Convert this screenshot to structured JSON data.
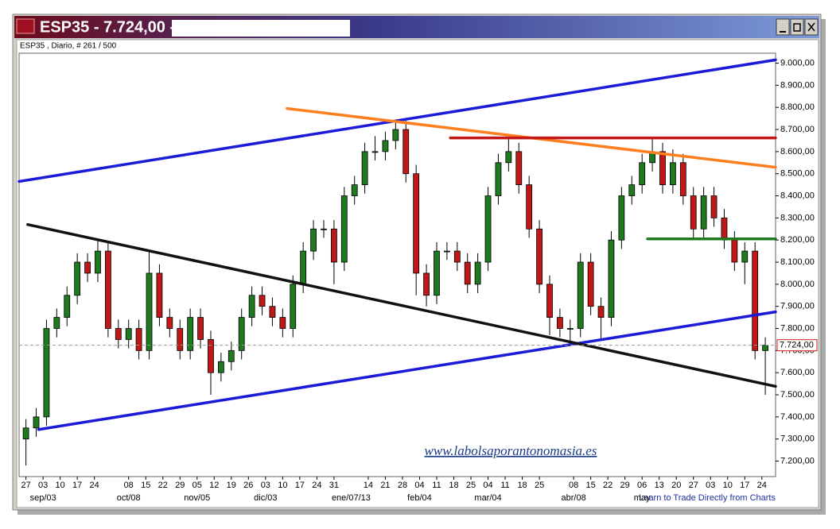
{
  "chart_data": {
    "type": "candlestick",
    "title": "ESP35 - 7.724,00 -",
    "subtitle": "ESP35 , Diario, # 261 / 500",
    "watermark": "www.labolsaporantonomasia.es",
    "footer_link": "Learn to Trade Directly from Charts",
    "up_color": "#1f7a1f",
    "down_color": "#c01818",
    "x": [
      0,
      3,
      6,
      9,
      12,
      15,
      18,
      21,
      24,
      27,
      30,
      33,
      36,
      39,
      42,
      45,
      48,
      51,
      54,
      57,
      60,
      63,
      66,
      69,
      72,
      75,
      78,
      81,
      84,
      87,
      90,
      93,
      96,
      99,
      102,
      105,
      108,
      111,
      114,
      117,
      120,
      123,
      126,
      129,
      132,
      135,
      138,
      141,
      144,
      147,
      150,
      153,
      156,
      159,
      162,
      165,
      168,
      171,
      174,
      177,
      180,
      183,
      186,
      189,
      192,
      195,
      198,
      201,
      204,
      207,
      210,
      213,
      216
    ],
    "open": [
      7300,
      7350,
      7400,
      7800,
      7850,
      7950,
      8100,
      8050,
      8150,
      7800,
      7750,
      7800,
      7700,
      8050,
      7850,
      7800,
      7700,
      7850,
      7750,
      7600,
      7650,
      7700,
      7850,
      7950,
      7900,
      7850,
      7800,
      8000,
      8150,
      8250,
      8250,
      8100,
      8400,
      8450,
      8600,
      8600,
      8650,
      8700,
      8500,
      8050,
      7950,
      8150,
      8150,
      8100,
      8000,
      8100,
      8400,
      8550,
      8600,
      8450,
      8250,
      8000,
      7850,
      7800,
      7800,
      8100,
      7900,
      7850,
      8200,
      8400,
      8450,
      8550,
      8600,
      8450,
      8550,
      8400,
      8250,
      8400,
      8300,
      8200,
      8100,
      8150,
      7700
    ],
    "high": [
      7390,
      7440,
      7840,
      7890,
      7990,
      8140,
      8140,
      8200,
      8190,
      7840,
      7840,
      7840,
      8150,
      8090,
      7890,
      7840,
      7890,
      7890,
      7790,
      7690,
      7740,
      7890,
      7990,
      7990,
      7940,
      7890,
      8040,
      8190,
      8290,
      8290,
      8290,
      8440,
      8490,
      8640,
      8670,
      8690,
      8740,
      8740,
      8540,
      8090,
      8190,
      8190,
      8190,
      8140,
      8140,
      8440,
      8590,
      8660,
      8640,
      8490,
      8290,
      8040,
      7890,
      7840,
      8140,
      8140,
      7940,
      8240,
      8440,
      8490,
      8590,
      8660,
      8640,
      8610,
      8590,
      8440,
      8440,
      8440,
      8340,
      8240,
      8190,
      8190,
      7760
    ],
    "low": [
      7180,
      7310,
      7360,
      7760,
      7810,
      7910,
      8010,
      8010,
      7760,
      7710,
      7710,
      7660,
      7660,
      7810,
      7760,
      7660,
      7660,
      7710,
      7500,
      7560,
      7610,
      7660,
      7810,
      7860,
      7810,
      7760,
      7760,
      7960,
      8110,
      8210,
      8000,
      8060,
      8360,
      8410,
      8560,
      8560,
      8610,
      8460,
      7950,
      7900,
      7910,
      8110,
      8060,
      7960,
      7960,
      8060,
      8360,
      8510,
      8410,
      8210,
      7960,
      7770,
      7760,
      7720,
      7760,
      7860,
      7750,
      7810,
      8160,
      8360,
      8410,
      8510,
      8410,
      8410,
      8360,
      8200,
      8210,
      8260,
      8160,
      8060,
      8000,
      7660,
      7500
    ],
    "close": [
      7350,
      7400,
      7800,
      7850,
      7950,
      8100,
      8050,
      8150,
      7800,
      7750,
      7800,
      7700,
      8050,
      7850,
      7800,
      7700,
      7850,
      7750,
      7600,
      7650,
      7700,
      7850,
      7950,
      7900,
      7850,
      7800,
      8000,
      8150,
      8250,
      8250,
      8100,
      8400,
      8450,
      8600,
      8600,
      8650,
      8700,
      8500,
      8050,
      7950,
      8150,
      8150,
      8100,
      8000,
      8100,
      8400,
      8550,
      8600,
      8450,
      8250,
      8000,
      7850,
      7800,
      7800,
      8100,
      7900,
      7850,
      8200,
      8400,
      8450,
      8550,
      8600,
      8450,
      8550,
      8400,
      8250,
      8400,
      8300,
      8200,
      8100,
      8150,
      7700,
      7724
    ],
    "xlim": [
      -2,
      219
    ],
    "ylim": [
      7130,
      9045
    ],
    "xticks": [
      {
        "value": 0,
        "label": "27"
      },
      {
        "value": 5,
        "label": "03"
      },
      {
        "value": 10,
        "label": "10"
      },
      {
        "value": 15,
        "label": "17"
      },
      {
        "value": 20,
        "label": "24"
      },
      {
        "value": 30,
        "label": "08"
      },
      {
        "value": 35,
        "label": "15"
      },
      {
        "value": 40,
        "label": "22"
      },
      {
        "value": 45,
        "label": "29"
      },
      {
        "value": 50,
        "label": "05"
      },
      {
        "value": 55,
        "label": "12"
      },
      {
        "value": 60,
        "label": "19"
      },
      {
        "value": 65,
        "label": "26"
      },
      {
        "value": 70,
        "label": "03"
      },
      {
        "value": 75,
        "label": "10"
      },
      {
        "value": 80,
        "label": "17"
      },
      {
        "value": 85,
        "label": "24"
      },
      {
        "value": 90,
        "label": "31"
      },
      {
        "value": 100,
        "label": "14"
      },
      {
        "value": 105,
        "label": "21"
      },
      {
        "value": 110,
        "label": "28"
      },
      {
        "value": 115,
        "label": "04"
      },
      {
        "value": 120,
        "label": "11"
      },
      {
        "value": 125,
        "label": "18"
      },
      {
        "value": 130,
        "label": "25"
      },
      {
        "value": 135,
        "label": "04"
      },
      {
        "value": 140,
        "label": "11"
      },
      {
        "value": 145,
        "label": "18"
      },
      {
        "value": 150,
        "label": "25"
      },
      {
        "value": 160,
        "label": "08"
      },
      {
        "value": 165,
        "label": "15"
      },
      {
        "value": 170,
        "label": "22"
      },
      {
        "value": 175,
        "label": "29"
      },
      {
        "value": 180,
        "label": "06"
      },
      {
        "value": 185,
        "label": "13"
      },
      {
        "value": 190,
        "label": "20"
      },
      {
        "value": 195,
        "label": "27"
      },
      {
        "value": 200,
        "label": "03"
      },
      {
        "value": 205,
        "label": "10"
      },
      {
        "value": 210,
        "label": "17"
      },
      {
        "value": 215,
        "label": "24"
      }
    ],
    "month_labels": [
      {
        "value": 5,
        "label": "sep/03"
      },
      {
        "value": 30,
        "label": "oct/08"
      },
      {
        "value": 50,
        "label": "nov/05"
      },
      {
        "value": 70,
        "label": "dic/03"
      },
      {
        "value": 95,
        "label": "ene/07/13"
      },
      {
        "value": 115,
        "label": "feb/04"
      },
      {
        "value": 135,
        "label": "mar/04"
      },
      {
        "value": 160,
        "label": "abr/08"
      },
      {
        "value": 180,
        "label": "may"
      }
    ],
    "yticks": [
      {
        "value": 7200,
        "label": "7.200,00"
      },
      {
        "value": 7300,
        "label": "7.300,00"
      },
      {
        "value": 7400,
        "label": "7.400,00"
      },
      {
        "value": 7500,
        "label": "7.500,00"
      },
      {
        "value": 7600,
        "label": "7.600,00"
      },
      {
        "value": 7700,
        "label": "7.700,00"
      },
      {
        "value": 7800,
        "label": "7.800,00"
      },
      {
        "value": 7900,
        "label": "7.900,00"
      },
      {
        "value": 8000,
        "label": "8.000,00"
      },
      {
        "value": 8100,
        "label": "8.100,00"
      },
      {
        "value": 8200,
        "label": "8.200,00"
      },
      {
        "value": 8300,
        "label": "8.300,00"
      },
      {
        "value": 8400,
        "label": "8.400,00"
      },
      {
        "value": 8500,
        "label": "8.500,00"
      },
      {
        "value": 8600,
        "label": "8.600,00"
      },
      {
        "value": 8700,
        "label": "8.700,00"
      },
      {
        "value": 8800,
        "label": "8.800,00"
      },
      {
        "value": 8900,
        "label": "8.900,00"
      },
      {
        "value": 9000,
        "label": "9.000,00"
      }
    ],
    "last_price": {
      "value": 7724,
      "label": "7.724,00",
      "color": "#cc2020"
    },
    "trendlines": [
      {
        "color": "#1a1ad8",
        "points": [
          [
            -2,
            8465
          ],
          [
            219,
            9015
          ]
        ]
      },
      {
        "color": "#1a1ad8",
        "points": [
          [
            3.7,
            7343
          ],
          [
            219,
            7875
          ]
        ]
      },
      {
        "color": "#111111",
        "points": [
          [
            0.5,
            8270
          ],
          [
            219,
            7538
          ]
        ]
      },
      {
        "color": "#ff7f1e",
        "points": [
          [
            76.3,
            8795
          ],
          [
            219,
            8529
          ]
        ]
      },
      {
        "color": "#c41616",
        "points": [
          [
            124,
            8662
          ],
          [
            219,
            8662
          ]
        ]
      },
      {
        "color": "#1f7a1f",
        "points": [
          [
            181.6,
            8205
          ],
          [
            219,
            8205
          ]
        ]
      }
    ]
  }
}
